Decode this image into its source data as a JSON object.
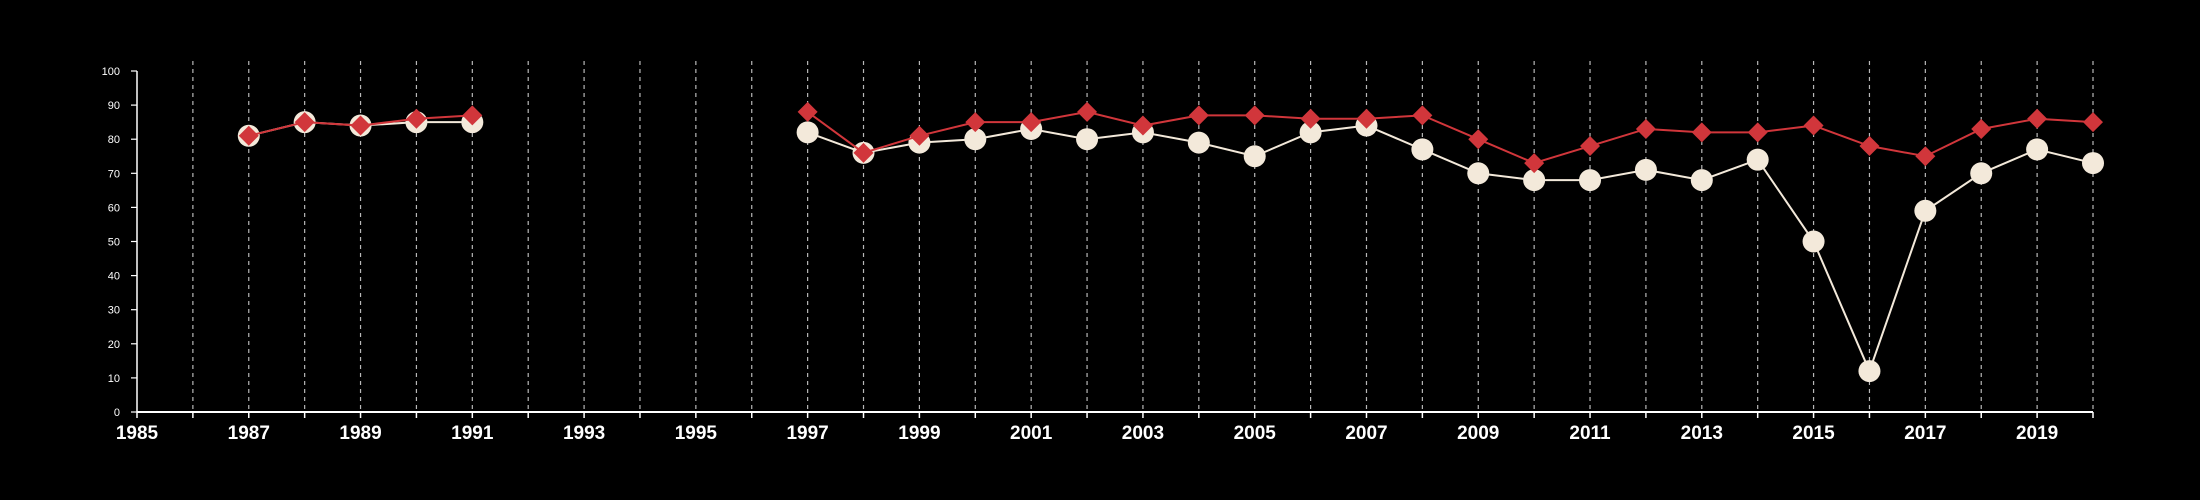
{
  "chart_data": {
    "type": "line",
    "title": "",
    "xlabel": "",
    "ylabel": "",
    "xlim": [
      1985,
      2020
    ],
    "ylim": [
      0,
      100
    ],
    "x_ticks": [
      "1985",
      "1987",
      "1989",
      "1991",
      "1993",
      "1995",
      "1997",
      "1999",
      "2001",
      "2003",
      "2005",
      "2007",
      "2009",
      "2011",
      "2013",
      "2015",
      "2017",
      "2019"
    ],
    "y_ticks": [
      "0",
      "10",
      "20",
      "30",
      "40",
      "50",
      "60",
      "70",
      "80",
      "90",
      "100"
    ],
    "grid": "vertical dashed lines at every year",
    "legend": "none",
    "background": "#000000",
    "series": [
      {
        "color": "#f3e9da",
        "marker": "circle",
        "segments": [
          {
            "x": [
              1987,
              1988,
              1989,
              1990,
              1991
            ],
            "y": [
              81,
              85,
              84,
              85,
              85
            ]
          },
          {
            "x": [
              1997,
              1998,
              1999,
              2000,
              2001,
              2002,
              2003,
              2004,
              2005,
              2006,
              2007,
              2008,
              2009,
              2010,
              2011,
              2012,
              2013,
              2014,
              2015,
              2016,
              2017,
              2018,
              2019,
              2020
            ],
            "y": [
              82,
              76,
              79,
              80,
              83,
              80,
              82,
              79,
              75,
              82,
              84,
              77,
              70,
              68,
              68,
              71,
              68,
              74,
              50,
              12,
              59,
              70,
              77,
              73
            ]
          }
        ]
      },
      {
        "color": "#d1363b",
        "marker": "diamond",
        "segments": [
          {
            "x": [
              1987,
              1988,
              1989,
              1990,
              1991
            ],
            "y": [
              81,
              85,
              84,
              86,
              87
            ]
          },
          {
            "x": [
              1997,
              1998,
              1999,
              2000,
              2001,
              2002,
              2003,
              2004,
              2005,
              2006,
              2007,
              2008,
              2009,
              2010,
              2011,
              2012,
              2013,
              2014,
              2015,
              2016,
              2017,
              2018,
              2019,
              2020
            ],
            "y": [
              88,
              76,
              81,
              85,
              85,
              88,
              84,
              87,
              87,
              86,
              86,
              87,
              80,
              73,
              78,
              83,
              82,
              82,
              84,
              78,
              75,
              83,
              86,
              85
            ]
          }
        ]
      }
    ]
  }
}
